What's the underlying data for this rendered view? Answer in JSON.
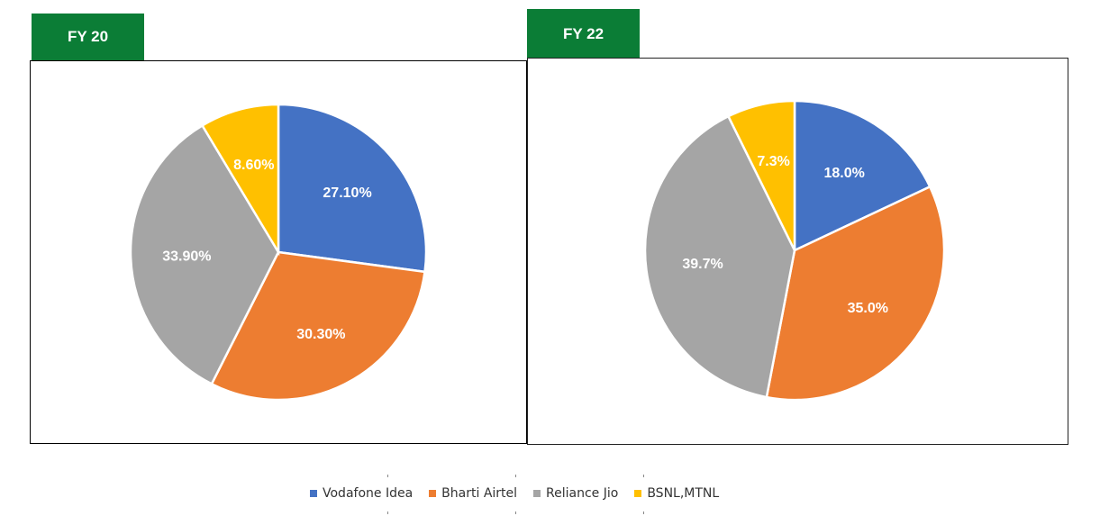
{
  "colors": {
    "vodafone": "#4472c4",
    "airtel": "#ed7d31",
    "jio": "#a5a5a5",
    "bsnl": "#ffc000",
    "tab_green": "#0b7d36"
  },
  "tabs": [
    {
      "label": "FY 20"
    },
    {
      "label": "FY 22"
    }
  ],
  "legend": {
    "items": [
      {
        "label": "Vodafone Idea",
        "color": "#4472c4"
      },
      {
        "label": "Bharti Airtel",
        "color": "#ed7d31"
      },
      {
        "label": "Reliance Jio",
        "color": "#a5a5a5"
      },
      {
        "label": "BSNL,MTNL",
        "color": "#ffc000"
      }
    ]
  },
  "chart_data": [
    {
      "type": "pie",
      "title": "FY 20",
      "categories": [
        "Vodafone Idea",
        "Bharti Airtel",
        "Reliance Jio",
        "BSNL,MTNL"
      ],
      "values": [
        27.1,
        30.3,
        33.9,
        8.6
      ],
      "labels": [
        "27.10%",
        "30.30%",
        "33.90%",
        "8.60%"
      ]
    },
    {
      "type": "pie",
      "title": "FY 22",
      "categories": [
        "Vodafone Idea",
        "Bharti Airtel",
        "Reliance Jio",
        "BSNL,MTNL"
      ],
      "values": [
        18.0,
        35.0,
        39.7,
        7.3
      ],
      "labels": [
        "18.0%",
        "35.0%",
        "39.7%",
        "7.3%"
      ]
    }
  ]
}
